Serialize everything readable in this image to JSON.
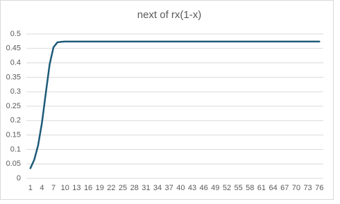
{
  "chart_data": {
    "type": "line",
    "title": "next of rx(1-x)",
    "categories": [
      1,
      null,
      null,
      4,
      null,
      null,
      7,
      null,
      null,
      10,
      null,
      null,
      13,
      null,
      null,
      16,
      null,
      null,
      19,
      null,
      null,
      22,
      null,
      null,
      25,
      null,
      null,
      28,
      null,
      null,
      31,
      null,
      null,
      34,
      null,
      null,
      37,
      null,
      null,
      40,
      null,
      null,
      43,
      null,
      null,
      46,
      null,
      null,
      49,
      null,
      null,
      52,
      null,
      null,
      55,
      null,
      null,
      58,
      null,
      null,
      61,
      null,
      null,
      64,
      null,
      null,
      67,
      null,
      null,
      70,
      null,
      null,
      73,
      null,
      null,
      76
    ],
    "series": [
      {
        "color": "#1d5a78",
        "values": [
          0.035,
          0.064,
          0.114,
          0.192,
          0.295,
          0.395,
          0.454,
          0.471,
          0.473,
          0.474,
          0.474,
          0.474,
          0.474,
          0.474,
          0.474,
          0.474,
          0.474,
          0.474,
          0.474,
          0.474,
          0.474,
          0.474,
          0.474,
          0.474,
          0.474,
          0.474,
          0.474,
          0.474,
          0.474,
          0.474,
          0.474,
          0.474,
          0.474,
          0.474,
          0.474,
          0.474,
          0.474,
          0.474,
          0.474,
          0.474,
          0.474,
          0.474,
          0.474,
          0.474,
          0.474,
          0.474,
          0.474,
          0.474,
          0.474,
          0.474,
          0.474,
          0.474,
          0.474,
          0.474,
          0.474,
          0.474,
          0.474,
          0.474,
          0.474,
          0.474,
          0.474,
          0.474,
          0.474,
          0.474,
          0.474,
          0.474,
          0.474,
          0.474,
          0.474,
          0.474,
          0.474,
          0.474,
          0.474,
          0.474,
          0.474,
          0.474
        ]
      }
    ],
    "ylim": [
      0,
      0.5
    ],
    "yticks": [
      0,
      0.05,
      0.1,
      0.15,
      0.2,
      0.25,
      0.3,
      0.35,
      0.4,
      0.45,
      0.5
    ],
    "grid": true
  }
}
